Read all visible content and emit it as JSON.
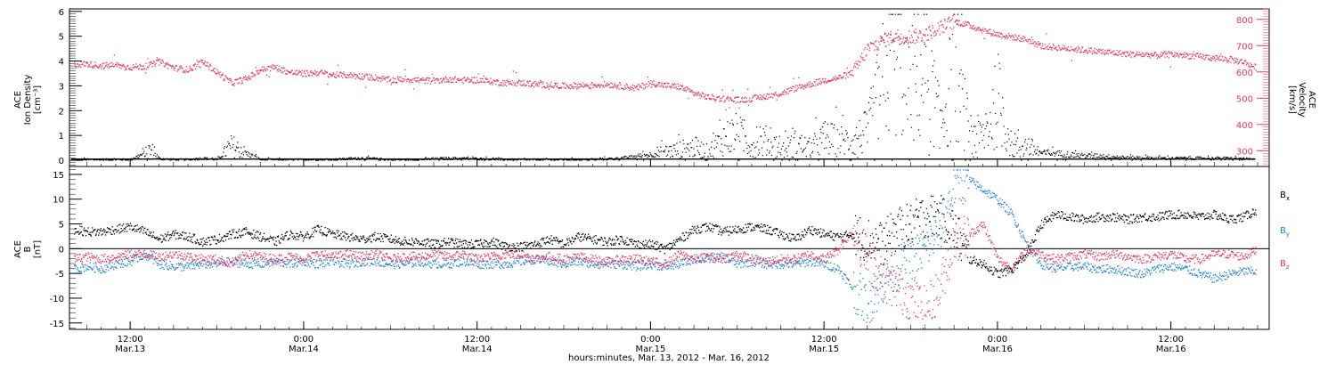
{
  "colors": {
    "axis": "#000000",
    "velocity": "#e8365e",
    "bx": "#000000",
    "by": "#1f7fd8",
    "bz": "#e8365e"
  },
  "chart_data": [
    {
      "type": "scatter",
      "panel": "top",
      "ylabel_left_lines": [
        "ACE",
        "Ion Density",
        "[cm⁻³]"
      ],
      "ylabel_right_lines": [
        "ACE",
        "Velocity",
        "[km/s]"
      ],
      "ylim_left": [
        -0.25,
        6.1
      ],
      "yticks_left": [
        0,
        1,
        2,
        3,
        4,
        5,
        6
      ],
      "ylim_right": [
        240,
        840
      ],
      "yticks_right": [
        300,
        400,
        500,
        600,
        700,
        800
      ],
      "x_unit": "hours since Mar. 13 00:00",
      "xlim": [
        7.8,
        90.8
      ],
      "series": [
        {
          "key": "density",
          "axis": "left",
          "x": [
            9,
            10,
            11,
            12,
            13,
            13.5,
            14,
            15,
            16,
            17,
            18,
            19,
            20,
            21,
            22,
            23,
            24,
            26,
            28,
            30,
            32,
            34,
            36,
            38,
            40,
            42,
            44,
            46,
            48,
            49,
            50,
            51,
            52,
            53,
            54,
            55,
            56,
            57,
            58,
            59,
            60,
            61,
            62,
            63,
            64,
            65,
            66,
            67,
            68,
            69,
            70,
            71,
            72,
            73,
            74,
            75,
            76,
            77,
            78,
            79,
            80,
            81,
            82,
            83,
            84,
            85,
            86,
            88,
            90
          ],
          "y": [
            0.05,
            0.05,
            0.05,
            0.05,
            0.3,
            0.4,
            0.08,
            0.05,
            0.05,
            0.1,
            0.05,
            0.6,
            0.3,
            0.05,
            0.05,
            0.05,
            0.05,
            0.05,
            0.1,
            0.05,
            0.05,
            0.1,
            0.08,
            0.05,
            0.05,
            0.05,
            0.05,
            0.1,
            0.25,
            0.35,
            0.45,
            0.55,
            0.35,
            0.9,
            1.1,
            0.6,
            0.8,
            0.4,
            0.7,
            0.5,
            0.9,
            0.8,
            0.8,
            1.2,
            3.1,
            4.2,
            2.3,
            3.8,
            1.5,
            3.6,
            1.2,
            0.9,
            2.5,
            0.5,
            0.6,
            0.3,
            0.3,
            0.25,
            0.2,
            0.2,
            0.15,
            0.12,
            0.12,
            0.1,
            0.1,
            0.1,
            0.1,
            0.1,
            0.05
          ]
        },
        {
          "key": "velocity",
          "axis": "right",
          "x": [
            8,
            9,
            10,
            11,
            12,
            13,
            14,
            15,
            16,
            17,
            18,
            19,
            20,
            21,
            22,
            23,
            24,
            25,
            26,
            27,
            28,
            29,
            30,
            31,
            32,
            33,
            34,
            35,
            36,
            37,
            38,
            39,
            40,
            41,
            42,
            43,
            44,
            45,
            46,
            47,
            48,
            49,
            50,
            51,
            52,
            53,
            54,
            55,
            56,
            57,
            58,
            59,
            60,
            61,
            62,
            63,
            64,
            65,
            66,
            67,
            68,
            69,
            70,
            71,
            72,
            73,
            74,
            75,
            76,
            77,
            78,
            79,
            80,
            81,
            82,
            83,
            84,
            85,
            86,
            87,
            88,
            89,
            90
          ],
          "y": [
            630,
            632,
            625,
            628,
            620,
            622,
            640,
            618,
            610,
            640,
            600,
            560,
            575,
            610,
            620,
            600,
            595,
            600,
            590,
            590,
            585,
            580,
            570,
            575,
            570,
            568,
            575,
            570,
            572,
            565,
            560,
            560,
            555,
            552,
            548,
            550,
            552,
            555,
            548,
            540,
            560,
            550,
            545,
            520,
            505,
            500,
            495,
            500,
            510,
            520,
            540,
            555,
            570,
            580,
            600,
            690,
            720,
            740,
            735,
            745,
            770,
            795,
            780,
            760,
            745,
            735,
            725,
            700,
            695,
            690,
            685,
            680,
            675,
            670,
            668,
            665,
            668,
            665,
            660,
            655,
            650,
            640,
            615
          ]
        }
      ]
    },
    {
      "type": "scatter",
      "panel": "bottom",
      "ylabel_left_lines": [
        "ACE",
        "B",
        "[nT]"
      ],
      "ylim": [
        -16.3,
        16.6
      ],
      "yticks": [
        -15,
        -10,
        -5,
        0,
        5,
        10,
        15
      ],
      "zero_line": true,
      "x_unit": "hours since Mar. 13 00:00",
      "xlim": [
        7.8,
        90.8
      ],
      "xticks": [
        {
          "x": 12,
          "line1": "12:00",
          "line2": "Mar.13"
        },
        {
          "x": 24,
          "line1": "0:00",
          "line2": "Mar.14"
        },
        {
          "x": 36,
          "line1": "12:00",
          "line2": "Mar.14"
        },
        {
          "x": 48,
          "line1": "0:00",
          "line2": "Mar.15"
        },
        {
          "x": 60,
          "line1": "12:00",
          "line2": "Mar.15"
        },
        {
          "x": 72,
          "line1": "0:00",
          "line2": "Mar.16"
        },
        {
          "x": 84,
          "line1": "12:00",
          "line2": "Mar.16"
        }
      ],
      "xlabel": "hours:minutes, Mar. 13, 2012 - Mar. 16, 2012",
      "series": [
        {
          "key": "bx",
          "name": "B",
          "subscript": "x",
          "x": [
            8,
            9,
            10,
            11,
            12,
            13,
            14,
            15,
            16,
            17,
            18,
            19,
            20,
            21,
            22,
            23,
            24,
            25,
            26,
            27,
            28,
            29,
            30,
            31,
            32,
            33,
            34,
            35,
            36,
            37,
            38,
            39,
            40,
            41,
            42,
            43,
            44,
            45,
            46,
            47,
            48,
            49,
            50,
            51,
            52,
            53,
            54,
            55,
            56,
            57,
            58,
            59,
            60,
            61,
            62,
            63,
            64,
            65,
            66,
            67,
            68,
            69,
            70,
            71,
            72,
            73,
            74,
            75,
            76,
            77,
            78,
            79,
            80,
            81,
            82,
            83,
            84,
            85,
            86,
            87,
            88,
            89,
            90
          ],
          "y": [
            4,
            3.5,
            3.5,
            4,
            4.5,
            3.5,
            2,
            3,
            2.5,
            1.5,
            2,
            3,
            3.5,
            2.5,
            1.5,
            3,
            2.5,
            4,
            3,
            2.5,
            2,
            2.5,
            2,
            1.5,
            1.5,
            1,
            1.5,
            1,
            1,
            1.5,
            0.5,
            0.5,
            1,
            2,
            1,
            2.5,
            2,
            1.5,
            2,
            1,
            1,
            0,
            2,
            4,
            4.5,
            3.5,
            4,
            4.5,
            4,
            3,
            2,
            4,
            3,
            2.5,
            3,
            2,
            1,
            4,
            5,
            7,
            6.5,
            4,
            -2,
            -3,
            -5,
            -4,
            -1,
            5,
            7,
            6.5,
            6,
            6.5,
            6.5,
            6,
            6.5,
            6.5,
            7,
            7,
            6.5,
            7,
            6,
            6.5,
            8
          ]
        },
        {
          "key": "by",
          "name": "B",
          "subscript": "y",
          "x": [
            8,
            9,
            10,
            11,
            12,
            13,
            14,
            15,
            16,
            17,
            18,
            19,
            20,
            21,
            22,
            23,
            24,
            25,
            26,
            27,
            28,
            29,
            30,
            31,
            32,
            33,
            34,
            35,
            36,
            37,
            38,
            39,
            40,
            41,
            42,
            43,
            44,
            45,
            46,
            47,
            48,
            49,
            50,
            51,
            52,
            53,
            54,
            55,
            56,
            57,
            58,
            59,
            60,
            61,
            62,
            63,
            64,
            65,
            66,
            67,
            68,
            69,
            70,
            71,
            72,
            73,
            74,
            75,
            76,
            77,
            78,
            79,
            80,
            81,
            82,
            83,
            84,
            85,
            86,
            87,
            88,
            89,
            90
          ],
          "y": [
            -4,
            -3.5,
            -4,
            -3,
            -2.5,
            -1,
            -3,
            -3.5,
            -3.5,
            -3,
            -3,
            -2.5,
            -3,
            -3,
            -2.5,
            -3,
            -2.5,
            -3,
            -2.5,
            -3,
            -2.5,
            -2.5,
            -3,
            -3,
            -2.5,
            -3,
            -3,
            -2.5,
            -3,
            -3,
            -3,
            -2.5,
            -2,
            -2.5,
            -3,
            -2.5,
            -3,
            -3,
            -3,
            -3.5,
            -3,
            -3.5,
            -3,
            -2,
            -2,
            -1.5,
            -3,
            -2.5,
            -3,
            -3,
            -3,
            -2.5,
            -3,
            -4,
            -8,
            -11,
            -7,
            -4,
            -2,
            0,
            4,
            13,
            14,
            12,
            10,
            7,
            1,
            -3,
            -4,
            -3.5,
            -3.5,
            -4,
            -4,
            -4.5,
            -5,
            -4,
            -3.5,
            -4,
            -5,
            -6,
            -5,
            -4.5,
            -4.5
          ]
        },
        {
          "key": "bz",
          "name": "B",
          "subscript": "z",
          "x": [
            8,
            9,
            10,
            11,
            12,
            13,
            14,
            15,
            16,
            17,
            18,
            19,
            20,
            21,
            22,
            23,
            24,
            25,
            26,
            27,
            28,
            29,
            30,
            31,
            32,
            33,
            34,
            35,
            36,
            37,
            38,
            39,
            40,
            41,
            42,
            43,
            44,
            45,
            46,
            47,
            48,
            49,
            50,
            51,
            52,
            53,
            54,
            55,
            56,
            57,
            58,
            59,
            60,
            61,
            62,
            63,
            64,
            65,
            66,
            67,
            68,
            69,
            70,
            71,
            72,
            73,
            74,
            75,
            76,
            77,
            78,
            79,
            80,
            81,
            82,
            83,
            84,
            85,
            86,
            87,
            88,
            89,
            90
          ],
          "y": [
            -2,
            -1.5,
            -2,
            -1.5,
            -1,
            -1,
            -1.5,
            -1,
            -1.5,
            -2,
            -2,
            -3,
            -1,
            -1.5,
            -2,
            -1.5,
            -2,
            -1,
            -1.5,
            -1,
            -1.5,
            -1,
            -2,
            -1.5,
            -1.5,
            -1,
            -1.5,
            -1,
            -2,
            -1.5,
            -1,
            -1,
            -2,
            -1.5,
            -2,
            -1.5,
            -2,
            -2.5,
            -2,
            -2,
            -2.5,
            -3,
            -1,
            -2,
            -1.5,
            -2,
            -1,
            -2,
            -2.5,
            -2,
            -2,
            -1,
            -2,
            0,
            4,
            -2,
            -6,
            -8,
            -10,
            -12,
            -8,
            2,
            3,
            5,
            -2,
            -4,
            0,
            -1,
            -2,
            -1.5,
            -1,
            -1.5,
            -1,
            -1.5,
            -2,
            -1.5,
            -1,
            -2,
            -2,
            -1,
            -1,
            -1.5,
            0
          ]
        }
      ]
    }
  ]
}
